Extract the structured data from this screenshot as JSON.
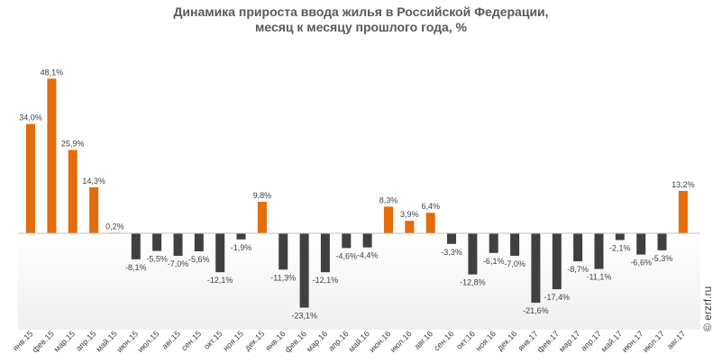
{
  "chart_data": {
    "type": "bar",
    "title_line1": "Динамика прироста ввода жилья в Российской Федерации,",
    "title_line2": "месяц к месяцу прошлого года, %",
    "categories": [
      "янв.15",
      "фев.15",
      "мар.15",
      "апр.15",
      "май.15",
      "июн.15",
      "июл.15",
      "авг.15",
      "сен.15",
      "окт.15",
      "ноя.15",
      "дек.15",
      "янв.16",
      "фев.16",
      "мар.16",
      "апр.16",
      "май.16",
      "июн.16",
      "июл.16",
      "авг.16",
      "сен.16",
      "окт.16",
      "ноя.16",
      "дек.16",
      "янв.17",
      "фев.17",
      "мар.17",
      "апр.17",
      "май.17",
      "июн.17",
      "июл.17",
      "авг.17"
    ],
    "values": [
      34.0,
      48.1,
      25.9,
      14.3,
      0.2,
      -8.1,
      -5.5,
      -7.0,
      -5.6,
      -12.1,
      -1.9,
      9.8,
      -11.3,
      -23.1,
      -12.1,
      -4.6,
      -4.4,
      8.3,
      3.9,
      6.4,
      -3.3,
      -12.8,
      -6.1,
      -7.0,
      -21.6,
      -17.4,
      -8.7,
      -11.1,
      -2.1,
      -6.6,
      -5.3,
      13.2
    ],
    "data_labels": [
      "34,0%",
      "48,1%",
      "25,9%",
      "14,3%",
      "0,2%",
      "-8,1%",
      "-5,5%",
      "-7,0%",
      "-5,6%",
      "-12,1%",
      "-1,9%",
      "9,8%",
      "-11,3%",
      "-23,1%",
      "-12,1%",
      "-4,6%",
      "-4,4%",
      "8,3%",
      "3,9%",
      "6,4%",
      "-3,3%",
      "-12,8%",
      "-6,1%",
      "-7,0%",
      "-21,6%",
      "-17,4%",
      "-8,7%",
      "-11,1%",
      "-2,1%",
      "-6,6%",
      "-5,3%",
      "13,2%"
    ],
    "colors": {
      "positive": "#E46C0A",
      "negative": "#404040"
    },
    "grid": false,
    "legend": "none",
    "watermark": "© erzrf.ru"
  }
}
